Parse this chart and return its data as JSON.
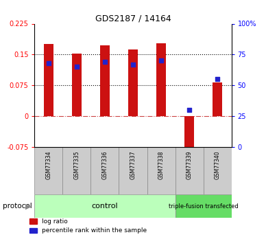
{
  "title": "GDS2187 / 14164",
  "samples": [
    "GSM77334",
    "GSM77335",
    "GSM77336",
    "GSM77337",
    "GSM77338",
    "GSM77339",
    "GSM77340"
  ],
  "log_ratios": [
    0.175,
    0.153,
    0.173,
    0.163,
    0.178,
    -0.095,
    0.082
  ],
  "percentile_ranks_pct": [
    68,
    65,
    69,
    67,
    70,
    30,
    55
  ],
  "bar_color": "#CC1111",
  "dot_color": "#2222CC",
  "ylim_left": [
    -0.075,
    0.225
  ],
  "ylim_right": [
    0,
    100
  ],
  "yticks_left": [
    -0.075,
    0,
    0.075,
    0.15,
    0.225
  ],
  "ytick_labels_left": [
    "-0.075",
    "0",
    "0.075",
    "0.15",
    "0.225"
  ],
  "yticks_right": [
    0,
    25,
    50,
    75,
    100
  ],
  "ytick_labels_right": [
    "0",
    "25",
    "50",
    "75",
    "100%"
  ],
  "hlines": [
    0.15,
    0.075
  ],
  "zero_line": 0,
  "control_count": 5,
  "group_labels": [
    "control",
    "triple-fusion transfected"
  ],
  "group_color_control": "#bbffbb",
  "group_color_triple": "#66dd66",
  "protocol_label": "protocol",
  "legend_items": [
    "log ratio",
    "percentile rank within the sample"
  ],
  "bar_width": 0.35
}
